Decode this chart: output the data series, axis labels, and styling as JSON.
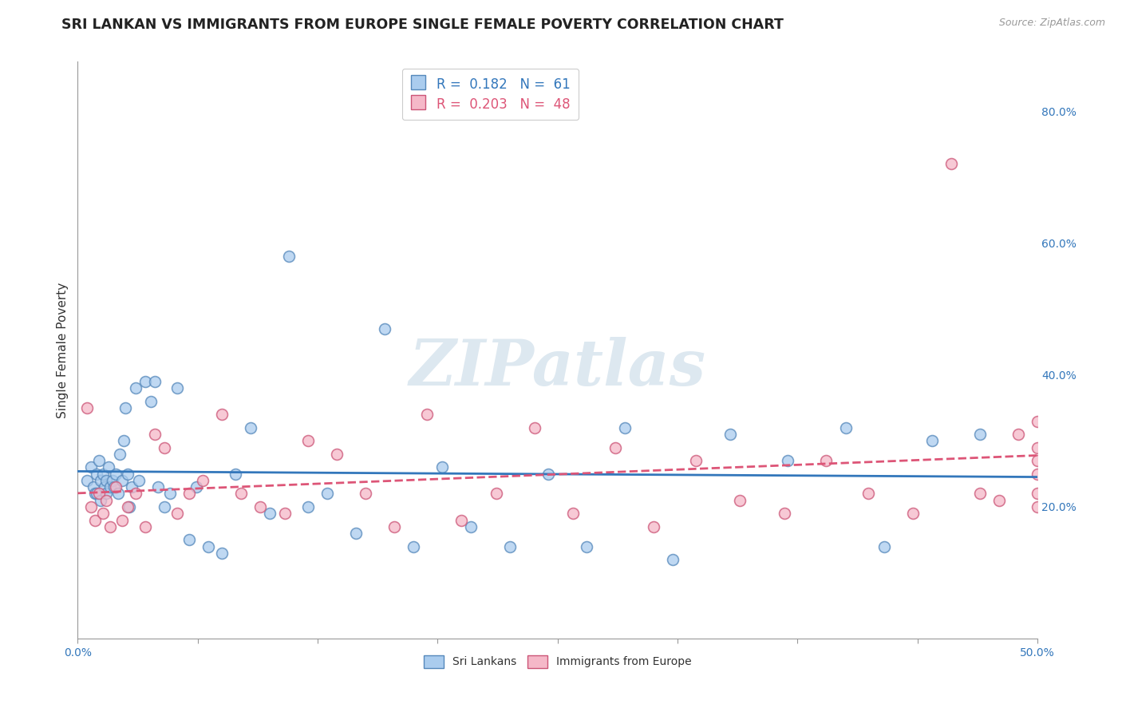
{
  "title": "SRI LANKAN VS IMMIGRANTS FROM EUROPE SINGLE FEMALE POVERTY CORRELATION CHART",
  "source": "Source: ZipAtlas.com",
  "ylabel": "Single Female Poverty",
  "right_yticks": [
    "20.0%",
    "40.0%",
    "60.0%",
    "80.0%"
  ],
  "right_ytick_vals": [
    0.2,
    0.4,
    0.6,
    0.8
  ],
  "xlim": [
    0.0,
    0.5
  ],
  "ylim": [
    0.0,
    0.875
  ],
  "watermark": "ZIPatlas",
  "sri_lankan_color": "#aaccee",
  "europe_color": "#f5b8c8",
  "sri_lankan_edge": "#5588bb",
  "europe_edge": "#cc5577",
  "trendline_sri_color": "#3377bb",
  "trendline_europe_color": "#dd5577",
  "sri_lankans_x": [
    0.005,
    0.007,
    0.008,
    0.009,
    0.01,
    0.01,
    0.011,
    0.012,
    0.012,
    0.013,
    0.014,
    0.015,
    0.015,
    0.016,
    0.017,
    0.018,
    0.019,
    0.02,
    0.021,
    0.022,
    0.023,
    0.024,
    0.025,
    0.026,
    0.027,
    0.028,
    0.03,
    0.032,
    0.035,
    0.038,
    0.04,
    0.042,
    0.045,
    0.048,
    0.052,
    0.058,
    0.062,
    0.068,
    0.075,
    0.082,
    0.09,
    0.1,
    0.11,
    0.12,
    0.13,
    0.145,
    0.16,
    0.175,
    0.19,
    0.205,
    0.225,
    0.245,
    0.265,
    0.285,
    0.31,
    0.34,
    0.37,
    0.4,
    0.42,
    0.445,
    0.47
  ],
  "sri_lankans_y": [
    0.24,
    0.26,
    0.23,
    0.22,
    0.25,
    0.22,
    0.27,
    0.24,
    0.21,
    0.25,
    0.23,
    0.24,
    0.22,
    0.26,
    0.23,
    0.24,
    0.23,
    0.25,
    0.22,
    0.28,
    0.24,
    0.3,
    0.35,
    0.25,
    0.2,
    0.23,
    0.38,
    0.24,
    0.39,
    0.36,
    0.39,
    0.23,
    0.2,
    0.22,
    0.38,
    0.15,
    0.23,
    0.14,
    0.13,
    0.25,
    0.32,
    0.19,
    0.58,
    0.2,
    0.22,
    0.16,
    0.47,
    0.14,
    0.26,
    0.17,
    0.14,
    0.25,
    0.14,
    0.32,
    0.12,
    0.31,
    0.27,
    0.32,
    0.14,
    0.3,
    0.31
  ],
  "europe_x": [
    0.005,
    0.007,
    0.009,
    0.011,
    0.013,
    0.015,
    0.017,
    0.02,
    0.023,
    0.026,
    0.03,
    0.035,
    0.04,
    0.045,
    0.052,
    0.058,
    0.065,
    0.075,
    0.085,
    0.095,
    0.108,
    0.12,
    0.135,
    0.15,
    0.165,
    0.182,
    0.2,
    0.218,
    0.238,
    0.258,
    0.28,
    0.3,
    0.322,
    0.345,
    0.368,
    0.39,
    0.412,
    0.435,
    0.455,
    0.47,
    0.48,
    0.49,
    0.5,
    0.5,
    0.5,
    0.5,
    0.5,
    0.5
  ],
  "europe_y": [
    0.35,
    0.2,
    0.18,
    0.22,
    0.19,
    0.21,
    0.17,
    0.23,
    0.18,
    0.2,
    0.22,
    0.17,
    0.31,
    0.29,
    0.19,
    0.22,
    0.24,
    0.34,
    0.22,
    0.2,
    0.19,
    0.3,
    0.28,
    0.22,
    0.17,
    0.34,
    0.18,
    0.22,
    0.32,
    0.19,
    0.29,
    0.17,
    0.27,
    0.21,
    0.19,
    0.27,
    0.22,
    0.19,
    0.72,
    0.22,
    0.21,
    0.31,
    0.27,
    0.22,
    0.29,
    0.25,
    0.33,
    0.2
  ],
  "background_color": "#ffffff",
  "grid_color": "#cccccc",
  "title_fontsize": 12.5,
  "axis_label_fontsize": 11,
  "tick_fontsize": 10,
  "legend_fontsize": 12,
  "watermark_fontsize": 58,
  "watermark_color": "#dde8f0",
  "scatter_size": 100,
  "scatter_alpha": 0.75,
  "scatter_linewidth": 1.2
}
